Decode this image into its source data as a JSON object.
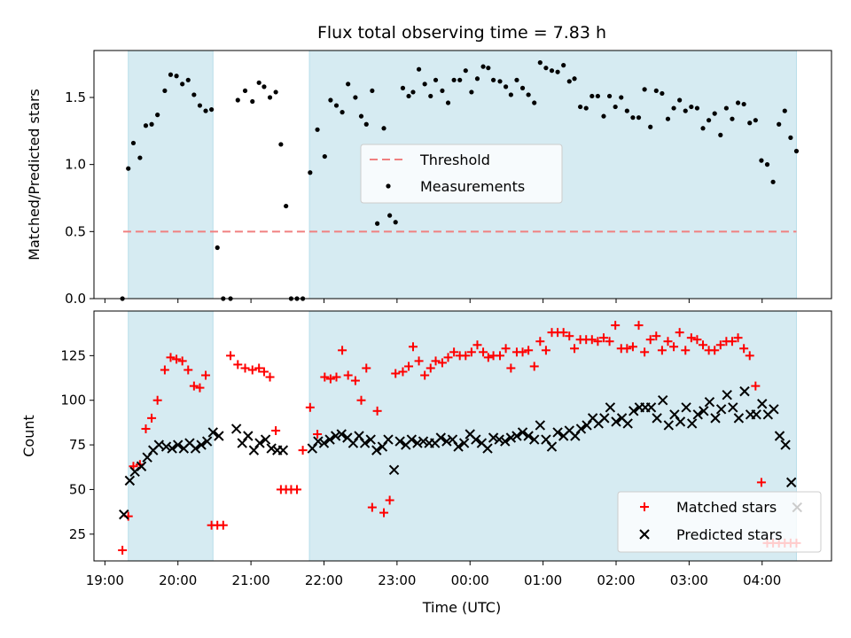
{
  "figure": {
    "title": "Flux total observing time = 7.83 h",
    "xlabel": "Time (UTC)",
    "x_tick_labels": [
      "19:00",
      "20:00",
      "21:00",
      "22:00",
      "23:00",
      "00:00",
      "01:00",
      "02:00",
      "03:00",
      "04:00"
    ]
  },
  "colors": {
    "shade": "#add8e6",
    "threshold": "#f08080",
    "measurement": "#000000",
    "matched": "#ff0000",
    "predicted": "#000000"
  },
  "chart_data": [
    {
      "type": "scatter",
      "panel": "top",
      "ylabel": "Matched/Predicted stars",
      "x_unit": "hours since 19:00 UTC",
      "xlim": [
        -0.15,
        9.95
      ],
      "ylim": [
        0,
        1.85
      ],
      "y_ticks": [
        0.0,
        0.5,
        1.0,
        1.5
      ],
      "y_tick_labels": [
        "0.0",
        "0.5",
        "1.0",
        "1.5"
      ],
      "grid": false,
      "legend": {
        "position": "center",
        "entries": [
          "Threshold",
          "Measurements"
        ]
      },
      "shaded_intervals": [
        [
          0.32,
          1.48
        ],
        [
          2.8,
          9.47
        ]
      ],
      "threshold": {
        "name": "Threshold",
        "value": 0.5,
        "x_range": [
          0.25,
          9.47
        ],
        "style": "dashed"
      },
      "series": [
        {
          "name": "Measurements",
          "marker": "dot",
          "x": [
            0.24,
            0.32,
            0.39,
            0.48,
            0.56,
            0.64,
            0.72,
            0.82,
            0.9,
            0.98,
            1.06,
            1.14,
            1.22,
            1.3,
            1.38,
            1.46,
            1.54,
            1.62,
            1.72,
            1.82,
            1.92,
            2.02,
            2.11,
            2.18,
            2.26,
            2.34,
            2.41,
            2.48,
            2.55,
            2.63,
            2.71,
            2.81,
            2.91,
            3.01,
            3.09,
            3.17,
            3.25,
            3.33,
            3.43,
            3.51,
            3.58,
            3.66,
            3.73,
            3.82,
            3.9,
            3.98,
            4.08,
            4.16,
            4.22,
            4.3,
            4.38,
            4.46,
            4.53,
            4.62,
            4.7,
            4.78,
            4.86,
            4.94,
            5.02,
            5.1,
            5.18,
            5.25,
            5.32,
            5.41,
            5.49,
            5.56,
            5.64,
            5.72,
            5.8,
            5.88,
            5.96,
            6.04,
            6.12,
            6.2,
            6.28,
            6.36,
            6.43,
            6.51,
            6.59,
            6.67,
            6.75,
            6.83,
            6.91,
            6.99,
            7.07,
            7.15,
            7.23,
            7.31,
            7.39,
            7.47,
            7.55,
            7.63,
            7.71,
            7.79,
            7.87,
            7.95,
            8.03,
            8.11,
            8.19,
            8.27,
            8.35,
            8.43,
            8.51,
            8.59,
            8.67,
            8.75,
            8.83,
            8.91,
            8.99,
            9.07,
            9.15,
            9.23,
            9.31,
            9.39,
            9.47
          ],
          "y": [
            0.0,
            0.97,
            1.16,
            1.05,
            1.29,
            1.3,
            1.37,
            1.55,
            1.67,
            1.66,
            1.6,
            1.63,
            1.52,
            1.44,
            1.4,
            1.41,
            0.38,
            0.0,
            0.0,
            1.48,
            1.55,
            1.47,
            1.61,
            1.58,
            1.5,
            1.54,
            1.15,
            0.69,
            0.0,
            0.0,
            0.0,
            0.94,
            1.26,
            1.06,
            1.48,
            1.44,
            1.39,
            1.6,
            1.5,
            1.36,
            1.3,
            1.55,
            0.56,
            1.27,
            0.62,
            0.57,
            1.57,
            1.51,
            1.54,
            1.71,
            1.6,
            1.51,
            1.63,
            1.55,
            1.46,
            1.63,
            1.63,
            1.7,
            1.54,
            1.64,
            1.73,
            1.72,
            1.63,
            1.62,
            1.58,
            1.52,
            1.63,
            1.57,
            1.52,
            1.46,
            1.76,
            1.72,
            1.7,
            1.69,
            1.74,
            1.62,
            1.64,
            1.43,
            1.42,
            1.51,
            1.51,
            1.36,
            1.51,
            1.43,
            1.5,
            1.4,
            1.35,
            1.35,
            1.56,
            1.28,
            1.55,
            1.53,
            1.34,
            1.42,
            1.48,
            1.4,
            1.43,
            1.42,
            1.27,
            1.33,
            1.38,
            1.22,
            1.42,
            1.34,
            1.46,
            1.45,
            1.31,
            1.33,
            1.03,
            1.0,
            0.87,
            1.3,
            1.4,
            1.2,
            1.1
          ]
        }
      ]
    },
    {
      "type": "scatter",
      "panel": "bottom",
      "ylabel": "Count",
      "x_unit": "hours since 19:00 UTC",
      "xlim": [
        -0.15,
        9.95
      ],
      "ylim": [
        10,
        150
      ],
      "y_ticks": [
        25,
        50,
        75,
        100,
        125
      ],
      "y_tick_labels": [
        "25",
        "50",
        "75",
        "100",
        "125"
      ],
      "grid": false,
      "legend": {
        "position": "lower right",
        "entries": [
          "Matched stars",
          "Predicted stars"
        ]
      },
      "shaded_intervals": [
        [
          0.32,
          1.48
        ],
        [
          2.8,
          9.47
        ]
      ],
      "series": [
        {
          "name": "Matched stars",
          "marker": "plus",
          "x": [
            0.24,
            0.32,
            0.39,
            0.48,
            0.56,
            0.64,
            0.72,
            0.82,
            0.9,
            0.98,
            1.06,
            1.14,
            1.22,
            1.3,
            1.38,
            1.46,
            1.54,
            1.62,
            1.72,
            1.82,
            1.92,
            2.02,
            2.11,
            2.18,
            2.26,
            2.34,
            2.41,
            2.48,
            2.55,
            2.63,
            2.71,
            2.81,
            2.91,
            3.01,
            3.09,
            3.17,
            3.25,
            3.33,
            3.43,
            3.51,
            3.58,
            3.66,
            3.73,
            3.82,
            3.9,
            3.98,
            4.08,
            4.16,
            4.22,
            4.3,
            4.38,
            4.46,
            4.53,
            4.62,
            4.7,
            4.78,
            4.86,
            4.94,
            5.02,
            5.1,
            5.18,
            5.25,
            5.32,
            5.41,
            5.49,
            5.56,
            5.64,
            5.72,
            5.8,
            5.88,
            5.96,
            6.04,
            6.12,
            6.2,
            6.28,
            6.36,
            6.43,
            6.51,
            6.59,
            6.67,
            6.75,
            6.83,
            6.91,
            6.99,
            7.07,
            7.15,
            7.23,
            7.31,
            7.39,
            7.47,
            7.55,
            7.63,
            7.71,
            7.79,
            7.87,
            7.95,
            8.03,
            8.11,
            8.19,
            8.27,
            8.35,
            8.43,
            8.51,
            8.59,
            8.67,
            8.75,
            8.83,
            8.91,
            8.99,
            9.07,
            9.15,
            9.23,
            9.31,
            9.39,
            9.47
          ],
          "y": [
            16,
            35,
            63,
            64,
            84,
            90,
            100,
            117,
            124,
            123,
            122,
            117,
            108,
            107,
            114,
            30,
            30,
            30,
            125,
            120,
            118,
            117,
            118,
            116,
            113,
            83,
            50,
            50,
            50,
            50,
            72,
            96,
            81,
            113,
            112,
            113,
            128,
            114,
            111,
            100,
            118,
            40,
            94,
            37,
            44,
            115,
            116,
            119,
            130,
            122,
            114,
            118,
            122,
            121,
            124,
            127,
            125,
            125,
            127,
            131,
            127,
            124,
            125,
            125,
            129,
            118,
            127,
            127,
            128,
            119,
            133,
            128,
            138,
            138,
            138,
            136,
            129,
            134,
            134,
            134,
            133,
            135,
            133,
            142,
            129,
            129,
            130,
            142,
            127,
            134,
            136,
            128,
            133,
            130,
            138,
            128,
            135,
            134,
            131,
            128,
            128,
            131,
            133,
            133,
            135,
            129,
            125,
            108,
            54,
            20,
            20,
            20,
            20,
            20,
            20
          ]
        },
        {
          "name": "Predicted stars",
          "marker": "x",
          "x": [
            0.26,
            0.34,
            0.41,
            0.5,
            0.58,
            0.66,
            0.74,
            0.84,
            0.92,
            1.0,
            1.08,
            1.16,
            1.24,
            1.32,
            1.4,
            1.48,
            1.56,
            1.8,
            1.88,
            1.96,
            2.04,
            2.12,
            2.2,
            2.28,
            2.36,
            2.44,
            2.84,
            2.92,
            3.0,
            3.08,
            3.16,
            3.24,
            3.32,
            3.4,
            3.48,
            3.56,
            3.64,
            3.72,
            3.8,
            3.88,
            3.96,
            4.04,
            4.12,
            4.2,
            4.28,
            4.36,
            4.44,
            4.52,
            4.6,
            4.68,
            4.76,
            4.84,
            4.92,
            5.0,
            5.08,
            5.16,
            5.24,
            5.32,
            5.4,
            5.48,
            5.56,
            5.64,
            5.72,
            5.8,
            5.88,
            5.96,
            6.04,
            6.12,
            6.2,
            6.28,
            6.36,
            6.44,
            6.52,
            6.6,
            6.68,
            6.76,
            6.84,
            6.92,
            7.0,
            7.08,
            7.16,
            7.24,
            7.32,
            7.4,
            7.48,
            7.56,
            7.64,
            7.72,
            7.8,
            7.88,
            7.96,
            8.04,
            8.12,
            8.2,
            8.28,
            8.36,
            8.44,
            8.52,
            8.6,
            8.68,
            8.76,
            8.84,
            8.92,
            9.0,
            9.08,
            9.16,
            9.24,
            9.32,
            9.4,
            9.48
          ],
          "y": [
            36,
            55,
            60,
            63,
            68,
            72,
            75,
            74,
            73,
            75,
            73,
            76,
            73,
            75,
            77,
            82,
            80,
            84,
            76,
            80,
            72,
            76,
            78,
            73,
            72,
            72,
            73,
            77,
            76,
            78,
            80,
            81,
            79,
            76,
            80,
            76,
            78,
            72,
            74,
            78,
            61,
            77,
            75,
            78,
            76,
            77,
            76,
            76,
            79,
            77,
            78,
            74,
            76,
            81,
            78,
            76,
            73,
            79,
            78,
            77,
            79,
            80,
            82,
            80,
            78,
            86,
            78,
            74,
            82,
            80,
            83,
            80,
            84,
            86,
            90,
            87,
            90,
            96,
            88,
            90,
            87,
            94,
            96,
            96,
            96,
            90,
            100,
            86,
            92,
            88,
            96,
            87,
            92,
            94,
            99,
            90,
            95,
            103,
            96,
            90,
            105,
            92,
            92,
            98,
            92,
            95,
            80,
            75,
            54,
            40
          ]
        }
      ]
    }
  ]
}
